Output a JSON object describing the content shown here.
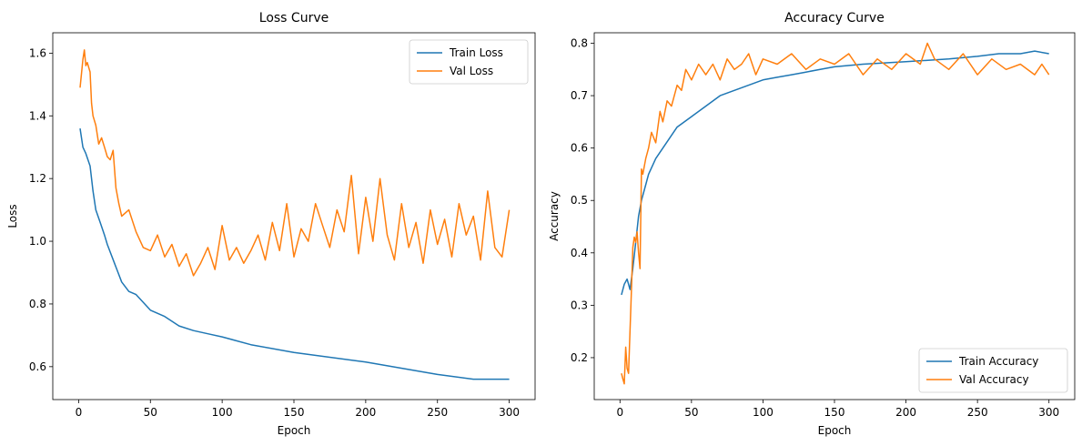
{
  "chart_data": [
    {
      "type": "line",
      "title": "Loss Curve",
      "xlabel": "Epoch",
      "ylabel": "Loss",
      "xlim": [
        -18,
        318
      ],
      "ylim": [
        0.495,
        1.665
      ],
      "xticks": [
        0,
        50,
        100,
        150,
        200,
        250,
        300
      ],
      "yticks": [
        0.6,
        0.8,
        1.0,
        1.2,
        1.4,
        1.6
      ],
      "ytick_decimals": 1,
      "grid": false,
      "legend_position": "top-right",
      "series": [
        {
          "name": "Train Loss",
          "color": "#1f77b4",
          "x": [
            1,
            3,
            5,
            8,
            10,
            12,
            15,
            18,
            20,
            25,
            30,
            35,
            40,
            50,
            60,
            70,
            80,
            90,
            100,
            120,
            150,
            200,
            250,
            275,
            290,
            300
          ],
          "y": [
            1.36,
            1.3,
            1.28,
            1.24,
            1.16,
            1.1,
            1.06,
            1.02,
            0.99,
            0.93,
            0.87,
            0.84,
            0.83,
            0.78,
            0.76,
            0.73,
            0.715,
            0.705,
            0.695,
            0.67,
            0.645,
            0.615,
            0.575,
            0.56,
            0.56,
            0.56
          ]
        },
        {
          "name": "Val Loss",
          "color": "#ff7f0e",
          "x": [
            1,
            3,
            4,
            5,
            6,
            8,
            9,
            10,
            12,
            14,
            16,
            18,
            20,
            22,
            24,
            26,
            28,
            30,
            35,
            40,
            45,
            50,
            55,
            60,
            65,
            70,
            75,
            80,
            85,
            90,
            95,
            100,
            105,
            110,
            115,
            120,
            125,
            130,
            135,
            140,
            145,
            150,
            155,
            160,
            165,
            170,
            175,
            180,
            185,
            190,
            195,
            200,
            205,
            210,
            215,
            220,
            225,
            230,
            235,
            240,
            245,
            250,
            255,
            260,
            265,
            270,
            275,
            280,
            285,
            290,
            295,
            300
          ],
          "y": [
            1.49,
            1.58,
            1.61,
            1.56,
            1.57,
            1.54,
            1.44,
            1.4,
            1.37,
            1.31,
            1.33,
            1.3,
            1.27,
            1.26,
            1.29,
            1.17,
            1.12,
            1.08,
            1.1,
            1.03,
            0.98,
            0.97,
            1.02,
            0.95,
            0.99,
            0.92,
            0.96,
            0.89,
            0.93,
            0.98,
            0.91,
            1.05,
            0.94,
            0.98,
            0.93,
            0.97,
            1.02,
            0.94,
            1.06,
            0.97,
            1.12,
            0.95,
            1.04,
            1.0,
            1.12,
            1.05,
            0.98,
            1.1,
            1.03,
            1.21,
            0.96,
            1.14,
            1.0,
            1.2,
            1.02,
            0.94,
            1.12,
            0.98,
            1.06,
            0.93,
            1.1,
            0.99,
            1.07,
            0.95,
            1.12,
            1.02,
            1.08,
            0.94,
            1.16,
            0.98,
            0.95,
            1.1
          ]
        }
      ]
    },
    {
      "type": "line",
      "title": "Accuracy Curve",
      "xlabel": "Epoch",
      "ylabel": "Accuracy",
      "xlim": [
        -18,
        318
      ],
      "ylim": [
        0.12,
        0.82
      ],
      "xticks": [
        0,
        50,
        100,
        150,
        200,
        250,
        300
      ],
      "yticks": [
        0.2,
        0.3,
        0.4,
        0.5,
        0.6,
        0.7,
        0.8
      ],
      "ytick_decimals": 1,
      "grid": false,
      "legend_position": "bottom-right",
      "series": [
        {
          "name": "Train Accuracy",
          "color": "#1f77b4",
          "x": [
            1,
            3,
            5,
            7,
            9,
            11,
            13,
            15,
            18,
            20,
            25,
            30,
            35,
            40,
            45,
            50,
            60,
            70,
            80,
            90,
            100,
            110,
            120,
            130,
            140,
            150,
            170,
            200,
            230,
            250,
            265,
            280,
            290,
            300
          ],
          "y": [
            0.32,
            0.34,
            0.35,
            0.33,
            0.37,
            0.42,
            0.47,
            0.5,
            0.53,
            0.55,
            0.58,
            0.6,
            0.62,
            0.64,
            0.65,
            0.66,
            0.68,
            0.7,
            0.71,
            0.72,
            0.73,
            0.735,
            0.74,
            0.745,
            0.75,
            0.755,
            0.76,
            0.765,
            0.77,
            0.775,
            0.78,
            0.78,
            0.785,
            0.78
          ]
        },
        {
          "name": "Val Accuracy",
          "color": "#ff7f0e",
          "x": [
            1,
            2,
            3,
            4,
            5,
            6,
            7,
            8,
            9,
            10,
            11,
            12,
            13,
            14,
            15,
            16,
            18,
            20,
            22,
            25,
            28,
            30,
            33,
            36,
            40,
            43,
            46,
            50,
            55,
            60,
            65,
            70,
            75,
            80,
            85,
            90,
            95,
            100,
            110,
            120,
            130,
            140,
            150,
            160,
            170,
            180,
            190,
            200,
            210,
            215,
            220,
            230,
            240,
            250,
            260,
            270,
            280,
            290,
            295,
            300
          ],
          "y": [
            0.17,
            0.16,
            0.15,
            0.22,
            0.18,
            0.17,
            0.25,
            0.33,
            0.41,
            0.43,
            0.42,
            0.44,
            0.4,
            0.37,
            0.56,
            0.55,
            0.58,
            0.6,
            0.63,
            0.61,
            0.67,
            0.65,
            0.69,
            0.68,
            0.72,
            0.71,
            0.75,
            0.73,
            0.76,
            0.74,
            0.76,
            0.73,
            0.77,
            0.75,
            0.76,
            0.78,
            0.74,
            0.77,
            0.76,
            0.78,
            0.75,
            0.77,
            0.76,
            0.78,
            0.74,
            0.77,
            0.75,
            0.78,
            0.76,
            0.8,
            0.77,
            0.75,
            0.78,
            0.74,
            0.77,
            0.75,
            0.76,
            0.74,
            0.76,
            0.74
          ]
        }
      ]
    }
  ]
}
